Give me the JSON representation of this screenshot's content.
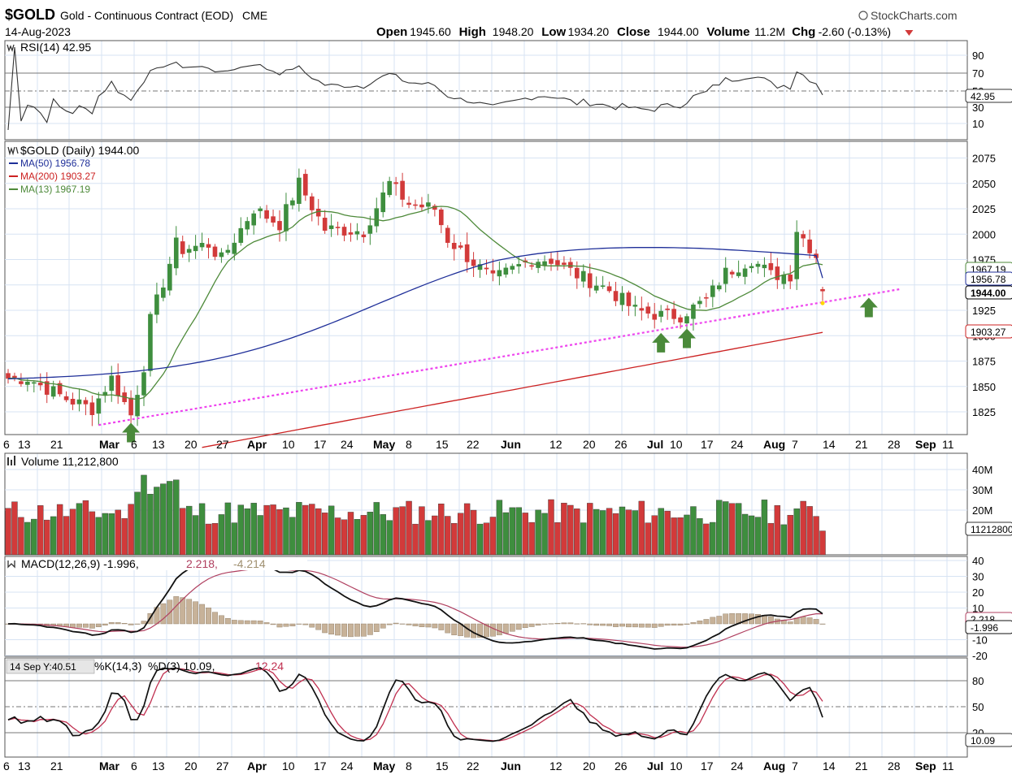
{
  "header": {
    "symbol": "$GOLD",
    "name": "Gold - Continuous Contract (EOD)",
    "exchange": "CME",
    "date": "14-Aug-2023",
    "brand": "StockCharts.com",
    "quote": [
      {
        "label": "Open",
        "value": "1945.60"
      },
      {
        "label": "High",
        "value": "1948.20"
      },
      {
        "label": "Low",
        "value": "1934.20"
      },
      {
        "label": "Close",
        "value": "1944.00"
      },
      {
        "label": "Volume",
        "value": "11.2M"
      },
      {
        "label": "Chg",
        "value": "-2.60 (-0.13%)"
      }
    ]
  },
  "colors": {
    "up": "#3e8e3e",
    "down": "#d23a3a",
    "ma50": "#1f2f99",
    "ma200": "#cc2222",
    "ma13": "#4e8a3a",
    "trendline": "#ee44ee",
    "arrow": "#4a8a3a",
    "grid": "#d7e3f3",
    "panel_border": "#555555",
    "hist": "#c7b299"
  },
  "rsi": {
    "label": "RSI(14) 42.95",
    "value_tag": "42.95",
    "ticks": [
      "90",
      "70",
      "50",
      "30",
      "10"
    ]
  },
  "price": {
    "label": "$GOLD (Daily) 1944.00",
    "ma_labels": [
      {
        "text": "MA(50) 1956.78",
        "color": "#1f2f99"
      },
      {
        "text": "MA(200) 1903.27",
        "color": "#cc2222"
      },
      {
        "text": "MA(13) 1967.19",
        "color": "#4e8a3a"
      }
    ],
    "ticks": [
      "2075",
      "2050",
      "2025",
      "2000",
      "1975",
      "1950",
      "1925",
      "1900",
      "1875",
      "1850",
      "1825"
    ],
    "tags": {
      "ma13": "1967.19",
      "ma50": "1956.78",
      "close": "1944.00",
      "ma200": "1903.27"
    }
  },
  "date_axis": [
    {
      "text": "6",
      "bold": false
    },
    {
      "text": "13",
      "bold": false
    },
    {
      "text": "21",
      "bold": false
    },
    {
      "text": "Mar",
      "bold": true
    },
    {
      "text": "6",
      "bold": false
    },
    {
      "text": "13",
      "bold": false
    },
    {
      "text": "20",
      "bold": false
    },
    {
      "text": "27",
      "bold": false
    },
    {
      "text": "Apr",
      "bold": true
    },
    {
      "text": "10",
      "bold": false
    },
    {
      "text": "17",
      "bold": false
    },
    {
      "text": "24",
      "bold": false
    },
    {
      "text": "May",
      "bold": true
    },
    {
      "text": "8",
      "bold": false
    },
    {
      "text": "15",
      "bold": false
    },
    {
      "text": "22",
      "bold": false
    },
    {
      "text": "Jun",
      "bold": true
    },
    {
      "text": "12",
      "bold": false
    },
    {
      "text": "20",
      "bold": false
    },
    {
      "text": "26",
      "bold": false
    },
    {
      "text": "Jul",
      "bold": true
    },
    {
      "text": "10",
      "bold": false
    },
    {
      "text": "17",
      "bold": false
    },
    {
      "text": "24",
      "bold": false
    },
    {
      "text": "Aug",
      "bold": true
    },
    {
      "text": "7",
      "bold": false
    },
    {
      "text": "14",
      "bold": false
    },
    {
      "text": "21",
      "bold": false
    },
    {
      "text": "28",
      "bold": false
    },
    {
      "text": "Sep",
      "bold": true
    },
    {
      "text": "11",
      "bold": false
    }
  ],
  "volume": {
    "label": "Volume 11,212,800",
    "ticks": [
      "40M",
      "30M",
      "20M"
    ],
    "value_tag": "11212800"
  },
  "macd": {
    "label_main": "MACD(12,26,9) -1.996,",
    "label_signal": "2.218,",
    "label_hist": "-4.214",
    "ticks": [
      "40",
      "30",
      "20",
      "10",
      "-10",
      "-20"
    ],
    "tags": {
      "signal": "2.218",
      "macd": "-1.996"
    }
  },
  "stoch": {
    "tooltip": "14 Sep Y:40.51",
    "label_k": "%K(14,3)",
    "label_d": "%D(3) 10.09,",
    "label_d_val": "12.24",
    "ticks": [
      "80",
      "50",
      "20"
    ],
    "value_tag": "10.09"
  },
  "chart_data": {
    "type": "candlestick",
    "title": "$GOLD Gold - Continuous Contract (EOD)",
    "period": "Daily, mid-Feb 2023 to 14-Aug-2023",
    "ylim": [
      1805,
      2095
    ],
    "last_bar": {
      "date": "14-Aug-2023",
      "open": 1945.6,
      "high": 1948.2,
      "low": 1934.2,
      "close": 1944.0
    },
    "indicators": {
      "MA(50)": 1956.78,
      "MA(200)": 1903.27,
      "MA(13)": 1967.19,
      "RSI(14)": 42.95,
      "MACD": -1.996,
      "MACD_signal": 2.218,
      "MACD_hist": -4.214,
      "%D(3)": 10.09,
      "%D(3)_2": 12.24
    },
    "price_pivots": [
      {
        "date": "2023-02-14",
        "value": 1858
      },
      {
        "date": "2023-02-22",
        "value": 1838
      },
      {
        "date": "2023-02-28",
        "value": 1828
      },
      {
        "date": "2023-03-03",
        "value": 1858
      },
      {
        "date": "2023-03-08",
        "value": 1822
      },
      {
        "date": "2023-03-10",
        "value": 1870
      },
      {
        "date": "2023-03-13",
        "value": 1915
      },
      {
        "date": "2023-03-17",
        "value": 1990
      },
      {
        "date": "2023-03-20",
        "value": 1985
      },
      {
        "date": "2023-03-24",
        "value": 1990
      },
      {
        "date": "2023-03-28",
        "value": 1975
      },
      {
        "date": "2023-04-04",
        "value": 2025
      },
      {
        "date": "2023-04-10",
        "value": 2010
      },
      {
        "date": "2023-04-13",
        "value": 2050
      },
      {
        "date": "2023-04-19",
        "value": 2005
      },
      {
        "date": "2023-04-27",
        "value": 2003
      },
      {
        "date": "2023-05-03",
        "value": 2050
      },
      {
        "date": "2023-05-08",
        "value": 2030
      },
      {
        "date": "2023-05-12",
        "value": 2025
      },
      {
        "date": "2023-05-16",
        "value": 1995
      },
      {
        "date": "2023-05-25",
        "value": 1955
      },
      {
        "date": "2023-05-30",
        "value": 1965
      },
      {
        "date": "2023-06-02",
        "value": 1975
      },
      {
        "date": "2023-06-07",
        "value": 1975
      },
      {
        "date": "2023-06-13",
        "value": 1960
      },
      {
        "date": "2023-06-20",
        "value": 1945
      },
      {
        "date": "2023-06-26",
        "value": 1925
      },
      {
        "date": "2023-06-30",
        "value": 1920
      },
      {
        "date": "2023-07-05",
        "value": 1920
      },
      {
        "date": "2023-07-11",
        "value": 1935
      },
      {
        "date": "2023-07-14",
        "value": 1962
      },
      {
        "date": "2023-07-20",
        "value": 1975
      },
      {
        "date": "2023-07-25",
        "value": 1960
      },
      {
        "date": "2023-07-28",
        "value": 1960
      },
      {
        "date": "2023-07-31",
        "value": 2005
      },
      {
        "date": "2023-08-04",
        "value": 1970
      },
      {
        "date": "2023-08-08",
        "value": 1958
      },
      {
        "date": "2023-08-14",
        "value": 1944
      }
    ],
    "annotations": {
      "trendline": [
        {
          "date": "2023-03-01",
          "value": 1812
        },
        {
          "date": "2023-08-21",
          "value": 1946
        }
      ],
      "support_arrows": [
        "2023-03-08",
        "2023-06-30",
        "2023-07-06",
        "2023-08-14"
      ]
    }
  }
}
